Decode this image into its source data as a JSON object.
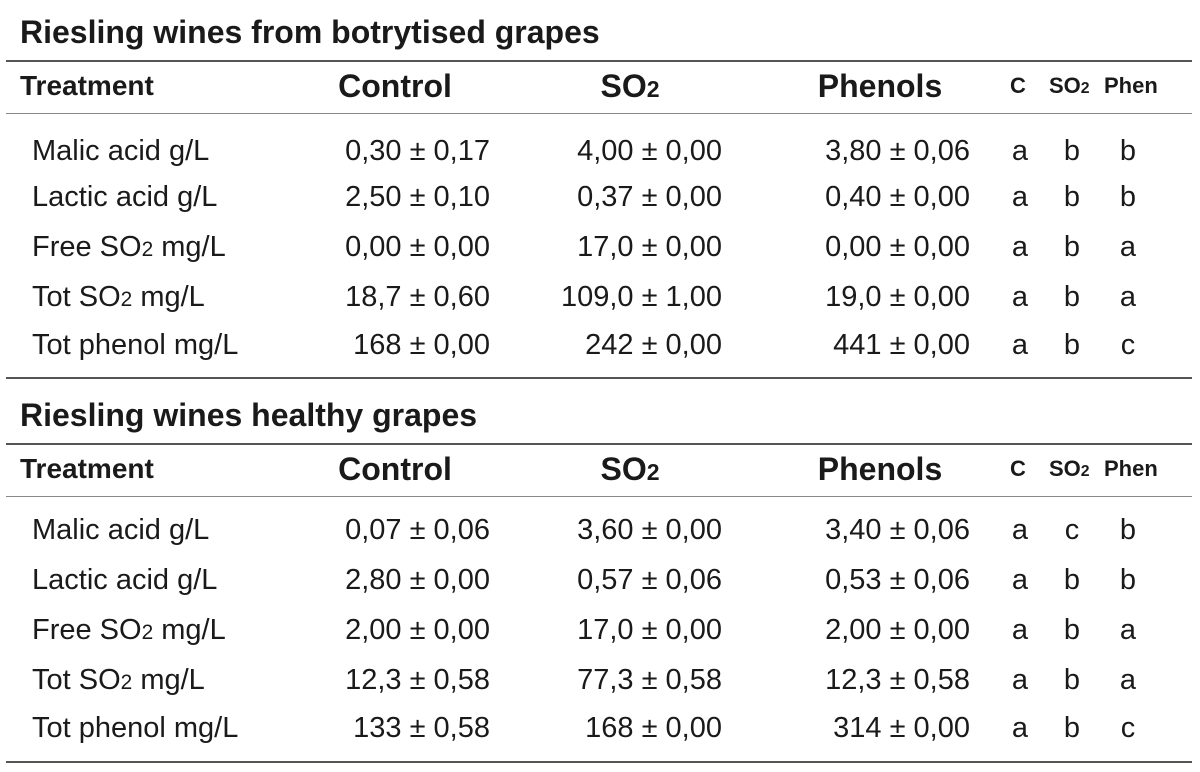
{
  "tables": [
    {
      "title": "Riesling wines from botrytised grapes",
      "header": {
        "treatment": "Treatment",
        "control": "Control",
        "so2": "SO",
        "so2_sub": "2",
        "phenols": "Phenols",
        "letter_c": "C",
        "letter_so2": "SO",
        "letter_so2_sub": "2",
        "letter_phen": "Phen"
      },
      "rows": [
        {
          "label_pre": "Malic acid g/L",
          "label_sub": "",
          "label_post": "",
          "control": "0,30 ± 0,17",
          "so2": "4,00 ± 0,00",
          "phenols": "3,80 ± 0,06",
          "l1": "a",
          "l2": "b",
          "l3": "b"
        },
        {
          "label_pre": "Lactic acid g/L",
          "label_sub": "",
          "label_post": "",
          "control": "2,50 ± 0,10",
          "so2": "0,37 ± 0,00",
          "phenols": "0,40 ± 0,00",
          "l1": "a",
          "l2": "b",
          "l3": "b"
        },
        {
          "label_pre": "Free SO",
          "label_sub": "2",
          "label_post": " mg/L",
          "control": "0,00 ± 0,00",
          "so2": "17,0 ± 0,00",
          "phenols": "0,00 ± 0,00",
          "l1": "a",
          "l2": "b",
          "l3": "a"
        },
        {
          "label_pre": "Tot SO",
          "label_sub": "2",
          "label_post": " mg/L",
          "control": "18,7 ± 0,60",
          "so2": "109,0 ± 1,00",
          "phenols": "19,0 ± 0,00",
          "l1": "a",
          "l2": "b",
          "l3": "a"
        },
        {
          "label_pre": "Tot phenol mg/L",
          "label_sub": "",
          "label_post": "",
          "control": "168 ± 0,00",
          "so2": "242 ± 0,00",
          "phenols": "441 ± 0,00",
          "l1": "a",
          "l2": "b",
          "l3": "c"
        }
      ]
    },
    {
      "title": "Riesling wines healthy grapes",
      "header": {
        "treatment": "Treatment",
        "control": "Control",
        "so2": "SO",
        "so2_sub": "2",
        "phenols": "Phenols",
        "letter_c": "C",
        "letter_so2": "SO",
        "letter_so2_sub": "2",
        "letter_phen": "Phen"
      },
      "rows": [
        {
          "label_pre": "Malic acid g/L",
          "label_sub": "",
          "label_post": "",
          "control": "0,07 ± 0,06",
          "so2": "3,60 ± 0,00",
          "phenols": "3,40 ± 0,06",
          "l1": "a",
          "l2": "c",
          "l3": "b"
        },
        {
          "label_pre": "Lactic acid g/L",
          "label_sub": "",
          "label_post": "",
          "control": "2,80 ± 0,00",
          "so2": "0,57 ± 0,06",
          "phenols": "0,53 ± 0,06",
          "l1": "a",
          "l2": "b",
          "l3": "b"
        },
        {
          "label_pre": "Free SO",
          "label_sub": "2",
          "label_post": " mg/L",
          "control": "2,00 ± 0,00",
          "so2": "17,0 ± 0,00",
          "phenols": "2,00 ± 0,00",
          "l1": "a",
          "l2": "b",
          "l3": "a"
        },
        {
          "label_pre": "Tot SO",
          "label_sub": "2",
          "label_post": " mg/L",
          "control": "12,3 ± 0,58",
          "so2": "77,3 ± 0,58",
          "phenols": "12,3 ± 0,58",
          "l1": "a",
          "l2": "b",
          "l3": "a"
        },
        {
          "label_pre": "Tot phenol mg/L",
          "label_sub": "",
          "label_post": "",
          "control": "133 ± 0,58",
          "so2": "168 ± 0,00",
          "phenols": "314 ± 0,00",
          "l1": "a",
          "l2": "b",
          "l3": "c"
        }
      ]
    }
  ]
}
